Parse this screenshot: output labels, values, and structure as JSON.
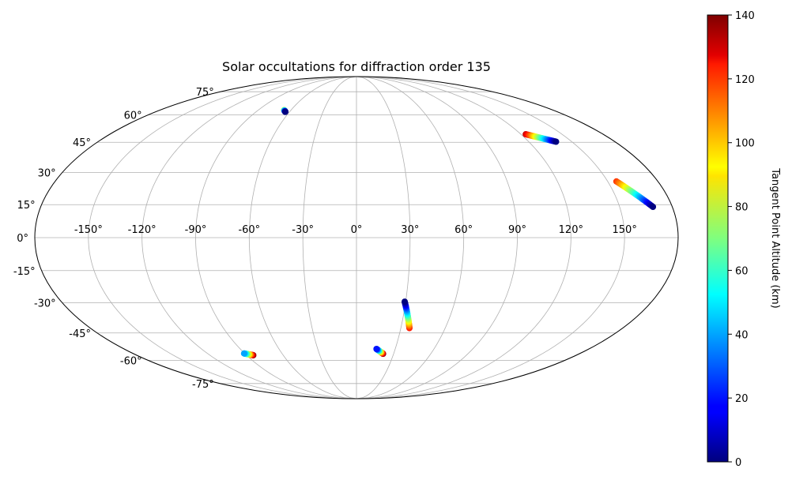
{
  "chart_data": {
    "type": "scatter",
    "projection": "mollweide",
    "title": "Solar occultations for diffraction order 135",
    "x_ticks": [
      "-150°",
      "-120°",
      "-90°",
      "-60°",
      "-30°",
      "0°",
      "30°",
      "60°",
      "90°",
      "120°",
      "150°"
    ],
    "y_ticks": [
      "-75°",
      "-60°",
      "-45°",
      "-30°",
      "-15°",
      "0°",
      "15°",
      "30°",
      "45°",
      "60°",
      "75°"
    ],
    "grid": true,
    "colorbar": {
      "label": "Tangent Point Altitude (km)",
      "range": [
        0,
        140
      ],
      "ticks": [
        "0",
        "20",
        "40",
        "60",
        "80",
        "100",
        "120",
        "140"
      ],
      "colormap": "jet"
    },
    "series": [
      {
        "lon_start": -66.2,
        "lat_start": 62.8,
        "alt_start": 80,
        "lon_end": -63.8,
        "lat_end": 61.8,
        "alt_end": 0
      },
      {
        "lon_start": 123.5,
        "lat_start": 49.2,
        "alt_start": 130,
        "lon_end": 139.0,
        "lat_end": 45.3,
        "alt_end": 0
      },
      {
        "lon_start": 155.2,
        "lat_start": 25.8,
        "alt_start": 115,
        "lon_end": 169.0,
        "lat_end": 14.0,
        "alt_end": 0
      },
      {
        "lon_start": 29.4,
        "lat_start": -29.5,
        "alt_start": 0,
        "lon_end": 35.8,
        "lat_end": -42.5,
        "alt_end": 120
      },
      {
        "lon_start": 15.5,
        "lat_start": -53.5,
        "alt_start": 20,
        "lon_end": 21.5,
        "lat_end": -56.2,
        "alt_end": 140
      },
      {
        "lon_start": -90.5,
        "lat_start": -56.0,
        "alt_start": 40,
        "lon_end": -84.5,
        "lat_end": -57.0,
        "alt_end": 140
      }
    ]
  }
}
